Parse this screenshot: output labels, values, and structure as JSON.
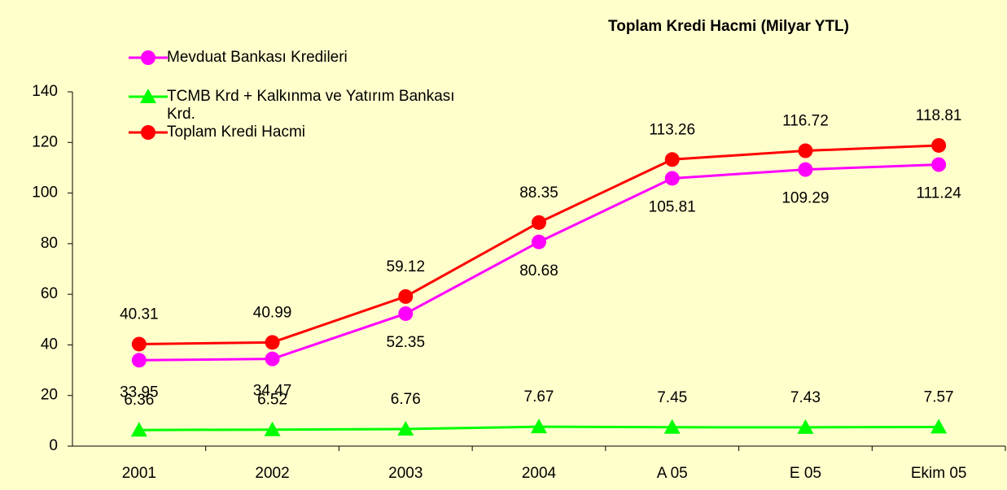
{
  "chart_data": {
    "type": "line",
    "title": "Toplam Kredi Hacmi (Milyar YTL)",
    "categories": [
      "2001",
      "2002",
      "2003",
      "2004",
      "A 05",
      "E 05",
      "Ekim 05"
    ],
    "series": [
      {
        "name": "Mevduat Bankası Kredileri",
        "color": "#ff00ff",
        "marker": "circle",
        "values": [
          33.95,
          34.47,
          52.35,
          80.68,
          105.81,
          109.29,
          111.24
        ]
      },
      {
        "name": "TCMB Krd + Kalkınma ve Yatırım Bankası Krd.",
        "color": "#00ff00",
        "marker": "triangle",
        "values": [
          6.36,
          6.52,
          6.76,
          7.67,
          7.45,
          7.43,
          7.57
        ]
      },
      {
        "name": "Toplam Kredi Hacmi",
        "color": "#ff0000",
        "marker": "circle",
        "values": [
          40.31,
          40.99,
          59.12,
          88.35,
          113.26,
          116.72,
          118.81
        ]
      }
    ],
    "ylim": [
      0,
      140
    ],
    "yticks": [
      0,
      20,
      40,
      60,
      80,
      100,
      120,
      140
    ],
    "grid": false
  }
}
